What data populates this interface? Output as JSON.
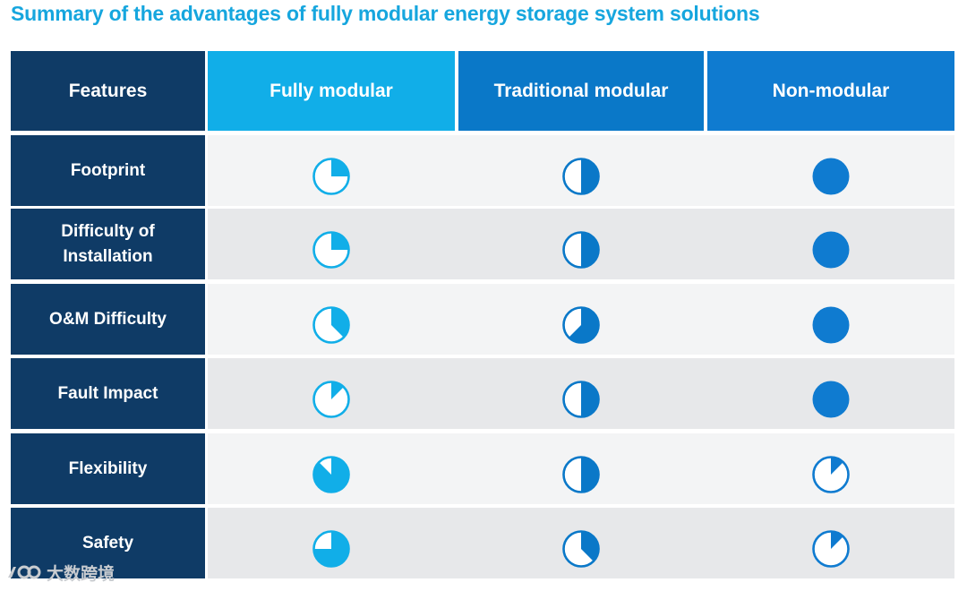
{
  "title": "Summary of the advantages of fully modular energy storage system solutions",
  "colors": {
    "accent": "#16a6de",
    "feature_bg": "#0f3b66",
    "fully_modular": "#11aee8",
    "traditional_modular": "#0a78c8",
    "non_modular": "#0f7bd0"
  },
  "table": {
    "headers": [
      "Features",
      "Fully modular",
      "Traditional modular",
      "Non-modular"
    ],
    "rows": [
      {
        "feature": "Footprint",
        "ratings": [
          0.25,
          0.5,
          1.0
        ]
      },
      {
        "feature": "Difficulty of Installation",
        "ratings": [
          0.25,
          0.5,
          1.0
        ]
      },
      {
        "feature": "O&M Difficulty",
        "ratings": [
          0.375,
          0.625,
          1.0
        ]
      },
      {
        "feature": "Fault Impact",
        "ratings": [
          0.125,
          0.5,
          1.0
        ]
      },
      {
        "feature": "Flexibility",
        "ratings": [
          0.875,
          0.5,
          0.125
        ]
      },
      {
        "feature": "Safety",
        "ratings": [
          0.75,
          0.375,
          0.125
        ]
      }
    ]
  },
  "watermark": {
    "icon": "big-data-crossborder-logo-icon",
    "text": "大数跨境"
  }
}
